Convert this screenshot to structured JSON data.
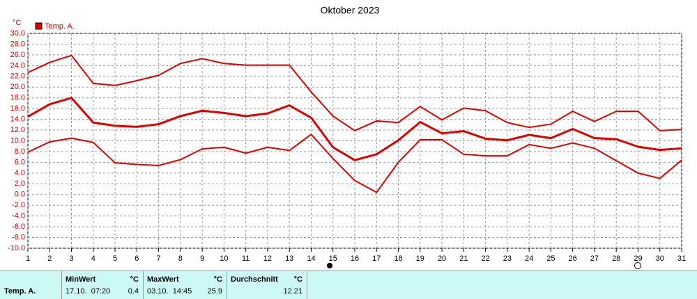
{
  "chart_data": {
    "type": "line",
    "title": "Oktober 2023",
    "y_unit": "°C",
    "x": [
      1,
      2,
      3,
      4,
      5,
      6,
      7,
      8,
      9,
      10,
      11,
      12,
      13,
      14,
      15,
      16,
      17,
      18,
      19,
      20,
      21,
      22,
      23,
      24,
      25,
      26,
      27,
      28,
      29,
      30,
      31
    ],
    "xlim": [
      1,
      31
    ],
    "xticks": [
      1,
      2,
      3,
      4,
      5,
      6,
      7,
      8,
      9,
      10,
      11,
      12,
      13,
      14,
      15,
      16,
      17,
      18,
      19,
      20,
      21,
      22,
      23,
      24,
      25,
      26,
      27,
      28,
      29,
      30,
      31
    ],
    "ylim": [
      -10,
      30
    ],
    "yticks": [
      {
        "value": -10,
        "label": "-10.0"
      },
      {
        "value": -8,
        "label": "-8.0"
      },
      {
        "value": -6,
        "label": "-6.0"
      },
      {
        "value": -4,
        "label": "-4.0"
      },
      {
        "value": -2,
        "label": "-2.0"
      },
      {
        "value": 0,
        "label": "0.0"
      },
      {
        "value": 2,
        "label": "2.0"
      },
      {
        "value": 4,
        "label": "4.0"
      },
      {
        "value": 6,
        "label": "6.0"
      },
      {
        "value": 8,
        "label": "8.0"
      },
      {
        "value": 10,
        "label": "10.0"
      },
      {
        "value": 12,
        "label": "12.0"
      },
      {
        "value": 14,
        "label": "14.0"
      },
      {
        "value": 16,
        "label": "16.0"
      },
      {
        "value": 18,
        "label": "18.0"
      },
      {
        "value": 20,
        "label": "20.0"
      },
      {
        "value": 22,
        "label": "22.0"
      },
      {
        "value": 24,
        "label": "24.0"
      },
      {
        "value": 26,
        "label": "26.0"
      },
      {
        "value": 28,
        "label": "28.0"
      },
      {
        "value": 30,
        "label": "30.0"
      }
    ],
    "grid": true,
    "legend": "top-left",
    "series": [
      {
        "name": "Temp. A.",
        "color": "#e00000",
        "width": 3,
        "values": [
          14.5,
          16.8,
          18.0,
          13.4,
          12.8,
          12.6,
          13.1,
          14.6,
          15.6,
          15.2,
          14.6,
          15.1,
          16.6,
          14.3,
          8.8,
          6.4,
          7.5,
          10.1,
          13.5,
          11.4,
          11.8,
          10.4,
          10.1,
          11.1,
          10.5,
          12.2,
          10.5,
          10.3,
          8.9,
          8.3,
          8.6
        ]
      },
      {
        "color": "#e00000",
        "width": 2,
        "values": [
          22.7,
          24.6,
          25.9,
          20.7,
          20.3,
          21.2,
          22.2,
          24.4,
          25.3,
          24.4,
          24.1,
          24.1,
          24.1,
          19.1,
          14.6,
          11.9,
          13.7,
          13.4,
          16.4,
          13.9,
          16.1,
          15.6,
          13.4,
          12.5,
          13.1,
          15.5,
          13.6,
          15.5,
          15.5,
          11.9,
          12.1
        ]
      },
      {
        "color": "#e00000",
        "width": 2,
        "values": [
          7.9,
          9.8,
          10.5,
          9.7,
          5.9,
          5.6,
          5.4,
          6.5,
          8.5,
          8.8,
          7.7,
          8.8,
          8.2,
          11.2,
          6.7,
          2.6,
          0.4,
          6.0,
          10.2,
          10.2,
          7.5,
          7.2,
          7.2,
          9.3,
          8.6,
          9.6,
          8.6,
          6.3,
          4.0,
          3.0,
          6.4
        ]
      }
    ]
  },
  "table": {
    "row_label": "Temp. A.",
    "min": {
      "header": "MinWert",
      "unit": "°C",
      "time": "17.10.  07:20",
      "value": "0.4"
    },
    "max": {
      "header": "MaxWert",
      "unit": "°C",
      "time": "03.10.  14:45",
      "value": "25.9"
    },
    "avg": {
      "header": "Durchschnitt",
      "unit": "°C",
      "value": "12.21"
    }
  }
}
